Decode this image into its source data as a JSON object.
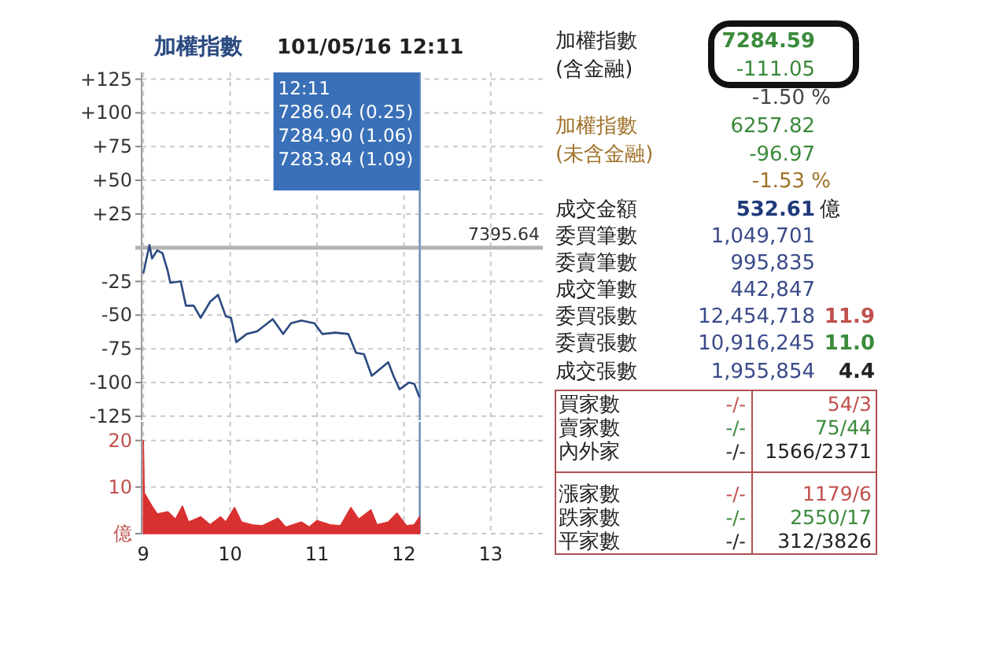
{
  "chart_data": [
    {
      "type": "line",
      "title": "加權指數",
      "subtitle": "101/05/16 12:11",
      "x": [
        9.0,
        9.07,
        9.1,
        9.16,
        9.22,
        9.28,
        9.31,
        9.43,
        9.49,
        9.58,
        9.66,
        9.77,
        9.86,
        9.95,
        10.01,
        10.07,
        10.19,
        10.31,
        10.49,
        10.61,
        10.7,
        10.82,
        10.97,
        11.06,
        11.21,
        11.36,
        11.45,
        11.54,
        11.63,
        11.82,
        11.88,
        11.95,
        12.06,
        12.12,
        12.18
      ],
      "series": [
        {
          "color": "#2b4a80",
          "values": [
            -19,
            2,
            -8,
            -2,
            -4,
            -17,
            -26,
            -25,
            -43,
            -43,
            -52,
            -40,
            -35,
            -51,
            -52,
            -70,
            -64,
            -62,
            -53,
            -64,
            -56,
            -54,
            -56,
            -64,
            -63,
            -64,
            -78,
            -79,
            -95,
            -85,
            -95,
            -105,
            -100,
            -101,
            -111
          ]
        }
      ],
      "xlim": [
        8.98,
        13.6
      ],
      "xticks": [
        9,
        10,
        11,
        12,
        13
      ],
      "ylim": [
        -128,
        130
      ],
      "yticks": [
        {
          "value": 125,
          "label": "+125"
        },
        {
          "value": 100,
          "label": "+100"
        },
        {
          "value": 75,
          "label": "+75"
        },
        {
          "value": 50,
          "label": "+50"
        },
        {
          "value": 25,
          "label": "+25"
        },
        {
          "value": 0,
          "label": null
        },
        -25,
        -50,
        -75,
        -100,
        -125
      ],
      "ref_lines": [
        {
          "axis": "y",
          "value": 0,
          "color": "#b4b4b4"
        },
        {
          "axis": "x",
          "value": 12.183,
          "color": "#7f9fc4"
        }
      ],
      "grid": true,
      "tick_labels": "y",
      "annotations": [
        "7395.64",
        "12:11",
        "7286.04 (0.25)",
        "7284.90 (1.06)",
        "7283.84 (1.09)"
      ]
    },
    {
      "type": "area",
      "x": [
        9.0,
        9.01,
        9.1,
        9.16,
        9.28,
        9.37,
        9.45,
        9.52,
        9.66,
        9.77,
        9.89,
        9.95,
        10.05,
        10.13,
        10.25,
        10.37,
        10.55,
        10.64,
        10.82,
        10.91,
        11.0,
        11.15,
        11.27,
        11.39,
        11.48,
        11.62,
        11.69,
        11.82,
        11.92,
        12.03,
        12.12,
        12.18
      ],
      "series": [
        {
          "color": "#d93030",
          "values": [
            20,
            8.7,
            5.9,
            4.2,
            4.7,
            3.1,
            5.9,
            2.5,
            3.6,
            1.9,
            3.6,
            2.5,
            5.6,
            2.5,
            1.9,
            1.7,
            3.3,
            1.4,
            2.5,
            1.4,
            2.8,
            1.9,
            1.7,
            5.6,
            3.1,
            5.1,
            1.9,
            2.5,
            4.4,
            1.7,
            1.9,
            3.6
          ]
        }
      ],
      "xlim": [
        8.98,
        13.6
      ],
      "xticks": [
        9,
        10,
        11,
        12,
        13
      ],
      "ylim": [
        0,
        24
      ],
      "yticks": [
        20,
        10,
        {
          "value": 0,
          "label": "億"
        }
      ],
      "ref_lines": [
        {
          "axis": "x",
          "value": 12.183,
          "color": "#7f9fc4"
        }
      ],
      "grid": true
    },
    {
      "type": "other",
      "annotations": [
        "加權指數",
        "(含金融)",
        "7284.59",
        "-111.05",
        "-1.50 %",
        "加權指數",
        "(未含金融)",
        "6257.82",
        "-96.97",
        "-1.53 %",
        "成交金額",
        "532.61",
        "億",
        "委買筆數",
        "1,049,701",
        "委賣筆數",
        "995,835",
        "成交筆數",
        "442,847",
        "委買張數",
        "12,454,718",
        "11.9",
        "委賣張數",
        "10,916,245",
        "11.0",
        "成交張數",
        "1,955,854",
        "4.4",
        "買家數",
        "-/-",
        "54/3",
        "賣家數",
        "-/-",
        "75/44",
        "內外家",
        "-/-",
        "1566/2371",
        "漲家數",
        "-/-",
        "1179/6",
        "跌家數",
        "-/-",
        "2550/17",
        "平家數",
        "-/-",
        "312/3826"
      ]
    }
  ]
}
